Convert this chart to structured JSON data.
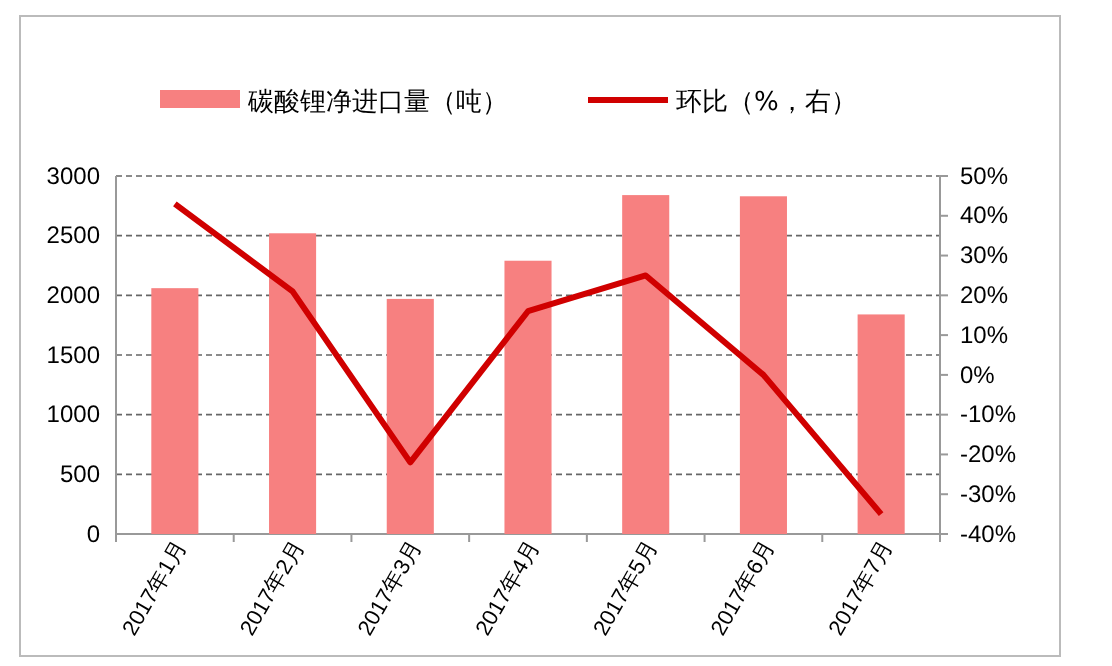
{
  "chart_data": {
    "type": "bar",
    "categories": [
      "2017年1月",
      "2017年2月",
      "2017年3月",
      "2017年4月",
      "2017年5月",
      "2017年6月",
      "2017年7月"
    ],
    "series": [
      {
        "name": "碳酸锂净进口量（吨）",
        "color": "#f78080",
        "values": [
          2060,
          2520,
          1970,
          2290,
          2840,
          2830,
          1840
        ]
      },
      {
        "name": "环比（%，右）",
        "type": "line",
        "axis": "y2",
        "color": "#d00000",
        "values": [
          43,
          21,
          -22,
          16,
          25,
          0,
          -35
        ]
      }
    ],
    "ylim": [
      0,
      3000
    ],
    "yticks": [
      0,
      500,
      1000,
      1500,
      2000,
      2500,
      3000
    ],
    "y2lim": [
      -40,
      50
    ],
    "y2ticks": [
      {
        "value": -40,
        "label": "-40%"
      },
      {
        "value": -30,
        "label": "-30%"
      },
      {
        "value": -20,
        "label": "-20%"
      },
      {
        "value": -10,
        "label": "-10%"
      },
      {
        "value": 0,
        "label": "0%"
      },
      {
        "value": 10,
        "label": "10%"
      },
      {
        "value": 20,
        "label": "20%"
      },
      {
        "value": 30,
        "label": "30%"
      },
      {
        "value": 40,
        "label": "40%"
      },
      {
        "value": 50,
        "label": "50%"
      }
    ],
    "grid": "y",
    "legend": "top",
    "marker": "none"
  }
}
